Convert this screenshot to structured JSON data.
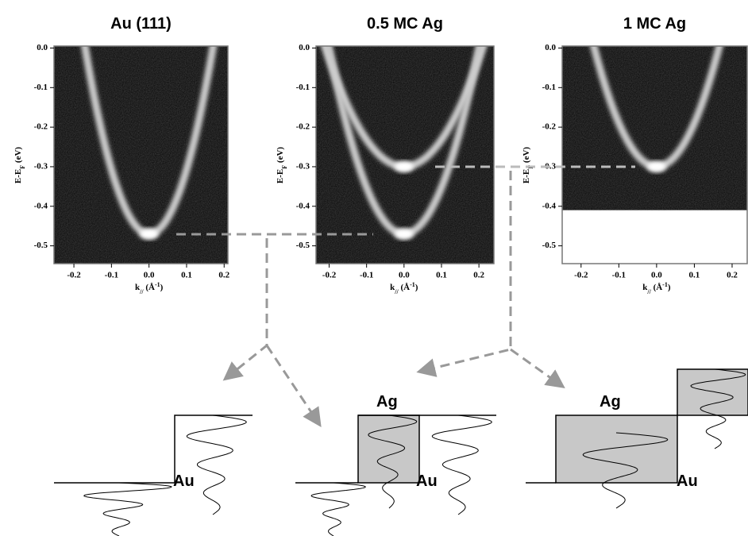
{
  "chart_data": [
    {
      "type": "band-map",
      "title": "Au (111)",
      "ylabel": [
        "E-E",
        "F",
        " (eV)"
      ],
      "xlabel": [
        "k",
        "//",
        " (Å",
        "-1",
        ")"
      ],
      "xlim": [
        -0.253,
        0.21
      ],
      "ylim": [
        -0.545,
        0.005
      ],
      "image_ylim": [
        -0.545,
        0.005
      ],
      "xticks": [
        -0.2,
        -0.1,
        {
          "value": 0,
          "label": "0.0"
        },
        0.1,
        0.2
      ],
      "yticks": [
        {
          "value": 0,
          "label": "0.0"
        },
        -0.1,
        -0.2,
        -0.3,
        -0.4,
        -0.5
      ],
      "bands": [
        {
          "minimum": -0.47,
          "kf": 0.17
        }
      ]
    },
    {
      "type": "band-map",
      "title": "0.5 MC Ag",
      "ylabel": [
        "E-E",
        "F",
        " (eV)"
      ],
      "xlabel": [
        "k",
        "//",
        " (Å",
        "-1",
        ")"
      ],
      "xlim": [
        -0.235,
        0.24
      ],
      "ylim": [
        -0.545,
        0.005
      ],
      "image_ylim": [
        -0.545,
        0.005
      ],
      "xticks": [
        -0.2,
        -0.1,
        {
          "value": 0,
          "label": "0.0"
        },
        0.1,
        0.2
      ],
      "yticks": [
        {
          "value": 0,
          "label": "0.0"
        },
        -0.1,
        -0.2,
        -0.3,
        -0.4,
        -0.5
      ],
      "bands": [
        {
          "minimum": -0.47,
          "kf": 0.2
        },
        {
          "minimum": -0.3,
          "kf": 0.21
        }
      ]
    },
    {
      "type": "band-map",
      "title": "1 MC Ag",
      "ylabel": [
        "E-E",
        "F",
        " (eV)"
      ],
      "xlabel": [
        "k",
        "//",
        " (Å",
        "-1",
        ")"
      ],
      "xlim": [
        -0.25,
        0.24
      ],
      "ylim": [
        -0.545,
        0.005
      ],
      "image_ylim": [
        -0.41,
        0.005
      ],
      "xticks": [
        -0.2,
        -0.1,
        {
          "value": 0,
          "label": "0.0"
        },
        0.1,
        0.2
      ],
      "yticks": [
        {
          "value": 0,
          "label": "0.0"
        },
        -0.1,
        -0.2,
        -0.3,
        -0.4,
        -0.5
      ],
      "bands": [
        {
          "minimum": -0.3,
          "kf": 0.165
        }
      ]
    }
  ],
  "schematic": {
    "left": {
      "au": "Au"
    },
    "middle": {
      "ag": "Ag",
      "au": "Au"
    },
    "right": {
      "ag": "Ag",
      "au": "Au"
    }
  }
}
